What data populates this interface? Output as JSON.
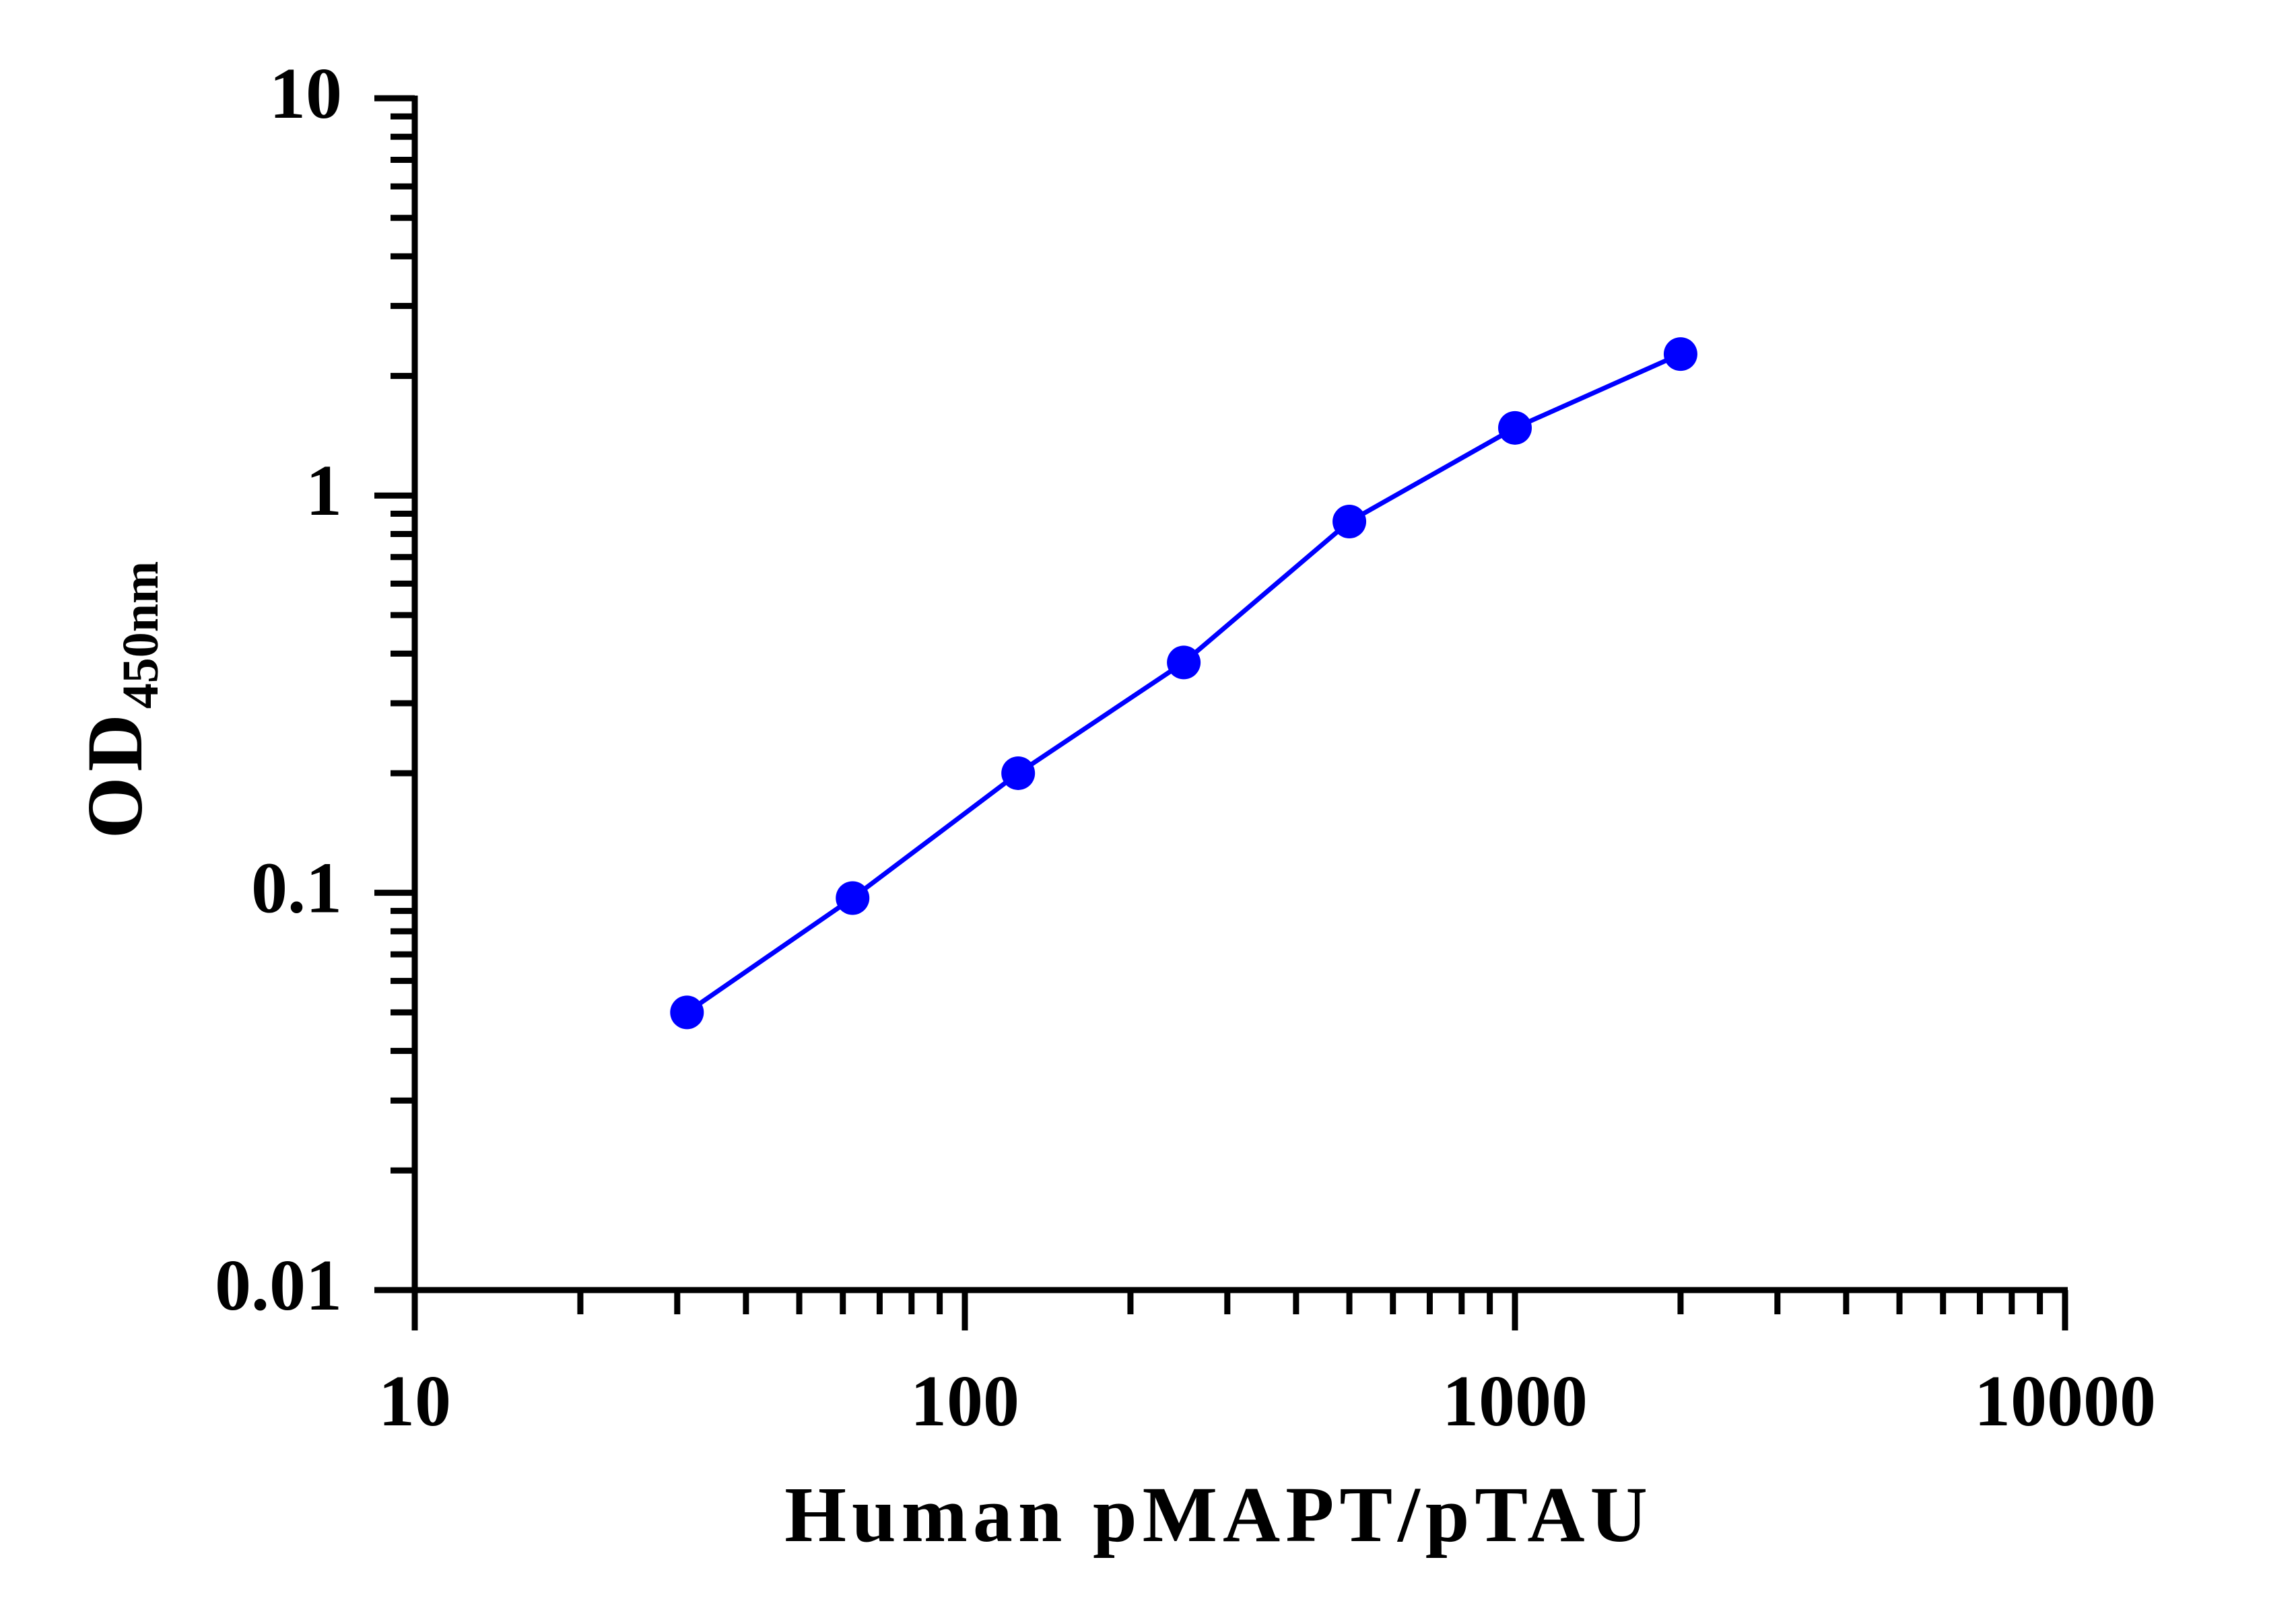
{
  "chart_data": {
    "type": "line",
    "xlabel": "Human pMAPT/pTAU",
    "ylabel": "OD",
    "ylabel_subscript": "450nm",
    "x": [
      31.25,
      62.5,
      125,
      250,
      500,
      1000,
      2000
    ],
    "series": [
      {
        "color": "#0000ff",
        "values": [
          0.05,
          0.097,
          0.2,
          0.38,
          0.86,
          1.48,
          2.27
        ]
      }
    ],
    "xscale": "log",
    "yscale": "log",
    "xlim": [
      10,
      10000
    ],
    "ylim": [
      0.01,
      10
    ],
    "xticks": [
      10,
      100,
      1000,
      10000
    ],
    "yticks": [
      0.01,
      0.1,
      1,
      10
    ],
    "minor_ticks": true,
    "grid": false
  }
}
